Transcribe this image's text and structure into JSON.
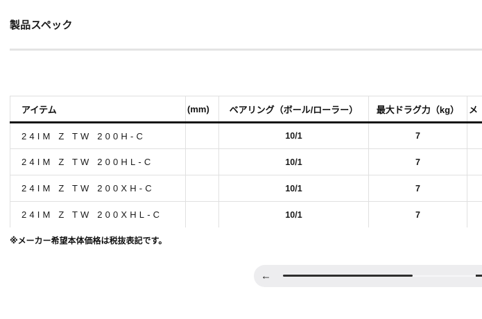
{
  "page": {
    "title": "製品スペック"
  },
  "table": {
    "columns": [
      {
        "label": "アイテム",
        "align": "left"
      },
      {
        "label": "(mm)",
        "align": "left",
        "note": "header tail of horizontally scrolled column"
      },
      {
        "label": "ベアリング（ボール/ローラー）",
        "align": "center"
      },
      {
        "label": "最大ドラグ力（kg）",
        "align": "center"
      },
      {
        "label": "メ",
        "align": "left",
        "note": "next column clipped at right edge"
      }
    ],
    "rows": [
      {
        "item": "24IM Z TW 200H-C",
        "mm": "",
        "bearing": "10/1",
        "drag": "7",
        "extra": ""
      },
      {
        "item": "24IM Z TW 200HL-C",
        "mm": "",
        "bearing": "10/1",
        "drag": "7",
        "extra": ""
      },
      {
        "item": "24IM Z TW 200XH-C",
        "mm": "",
        "bearing": "10/1",
        "drag": "7",
        "extra": ""
      },
      {
        "item": "24IM Z TW 200XHL-C",
        "mm": "",
        "bearing": "10/1",
        "drag": "7",
        "extra": ""
      }
    ]
  },
  "footnote": "※メーカー希望本体価格は税抜表記です。",
  "scrollbar": {
    "left_arrow": "←"
  },
  "colors": {
    "text": "#1a1a1a",
    "divider": "#e4e4e4",
    "table_border": "#e0e0e0",
    "header_rule": "#111111",
    "pill_background": "#ededef",
    "scroll_thumb": "#2e2e2e"
  }
}
